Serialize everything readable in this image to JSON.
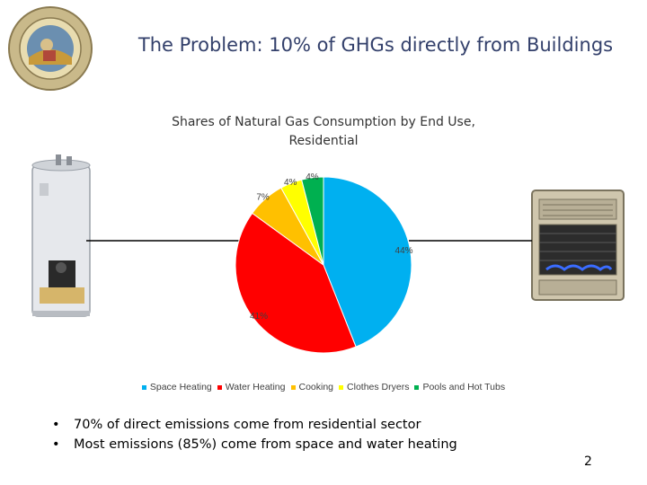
{
  "slide": {
    "title": "The Problem: 10% of GHGs directly from Buildings",
    "bullets": [
      "70% of direct emissions come from residential sector",
      "Most emissions (85%) come from space and water heating"
    ],
    "page_number": "2",
    "seal_icon": "state-seal-icon",
    "left_image_icon": "water-heater-icon",
    "right_image_icon": "wall-space-heater-icon"
  },
  "chart_data": {
    "type": "pie",
    "title": "Shares of Natural Gas Consumption by End Use, Residential",
    "title_lines": [
      "Shares of Natural Gas Consumption by End Use,",
      "Residential"
    ],
    "categories": [
      "Space Heating",
      "Water Heating",
      "Cooking",
      "Clothes Dryers",
      "Pools and Hot Tubs"
    ],
    "values": [
      44,
      41,
      7,
      4,
      4
    ],
    "labels": [
      "44%",
      "41%",
      "7%",
      "4%",
      "4%"
    ],
    "colors": [
      "#00b0f0",
      "#ff0000",
      "#ffc000",
      "#ffff00",
      "#00b050"
    ],
    "legend_position": "bottom"
  }
}
